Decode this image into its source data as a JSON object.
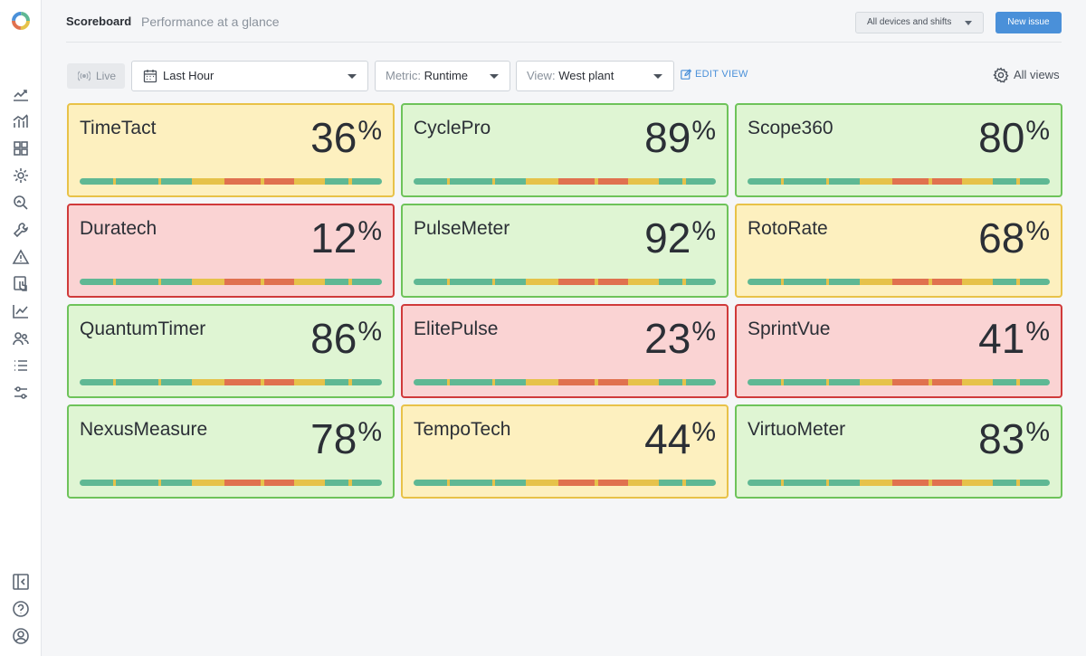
{
  "header": {
    "title": "Scoreboard",
    "subtitle": "Performance at a glance",
    "devices_label": "All devices and shifts",
    "new_issue_label": "New issue"
  },
  "toolbar": {
    "live_label": "Live",
    "time_range": "Last Hour",
    "metric_prefix": "Metric:",
    "metric_value": "Runtime",
    "view_prefix": "View:",
    "view_value": "West plant",
    "edit_view_label": "EDIT VIEW",
    "all_views_label": "All views"
  },
  "colors": {
    "green": "#5fb894",
    "yellow": "#e6c24a",
    "orange": "#e0714f",
    "accent": "#4a90d9"
  },
  "sidebar": {
    "items": [
      "line-chart-icon",
      "bar-chart-icon",
      "dashboard-grid-icon",
      "settings-cog-icon",
      "search-analytics-icon",
      "wrench-icon",
      "warning-icon",
      "touch-screen-icon",
      "trend-icon",
      "users-icon",
      "list-icon",
      "sliders-icon"
    ],
    "bottom": [
      "collapse-icon",
      "help-icon",
      "profile-icon"
    ]
  },
  "cards": [
    {
      "name": "TimeTact",
      "value": "36",
      "unit": "%",
      "status": "yellow"
    },
    {
      "name": "CyclePro",
      "value": "89",
      "unit": "%",
      "status": "green"
    },
    {
      "name": "Scope360",
      "value": "80",
      "unit": "%",
      "status": "green"
    },
    {
      "name": "Duratech",
      "value": "12",
      "unit": "%",
      "status": "red"
    },
    {
      "name": "PulseMeter",
      "value": "92",
      "unit": "%",
      "status": "green"
    },
    {
      "name": "RotoRate",
      "value": "68",
      "unit": "%",
      "status": "yellow"
    },
    {
      "name": "QuantumTimer",
      "value": "86",
      "unit": "%",
      "status": "green"
    },
    {
      "name": "ElitePulse",
      "value": "23",
      "unit": "%",
      "status": "red"
    },
    {
      "name": "SprintVue",
      "value": "41",
      "unit": "%",
      "status": "red"
    },
    {
      "name": "NexusMeasure",
      "value": "78",
      "unit": "%",
      "status": "green"
    },
    {
      "name": "TempoTech",
      "value": "44",
      "unit": "%",
      "status": "yellow"
    },
    {
      "name": "VirtuoMeter",
      "value": "83",
      "unit": "%",
      "status": "green"
    }
  ],
  "timeline_pattern": [
    {
      "state": "green",
      "share": 0.11
    },
    {
      "state": "yellow",
      "share": 0.01
    },
    {
      "state": "green",
      "share": 0.14
    },
    {
      "state": "yellow",
      "share": 0.01
    },
    {
      "state": "green",
      "share": 0.1
    },
    {
      "state": "yellow",
      "share": 0.11
    },
    {
      "state": "orange",
      "share": 0.12
    },
    {
      "state": "yellow",
      "share": 0.01
    },
    {
      "state": "orange",
      "share": 0.1
    },
    {
      "state": "yellow",
      "share": 0.1
    },
    {
      "state": "green",
      "share": 0.08
    },
    {
      "state": "yellow",
      "share": 0.01
    },
    {
      "state": "green",
      "share": 0.1
    }
  ]
}
